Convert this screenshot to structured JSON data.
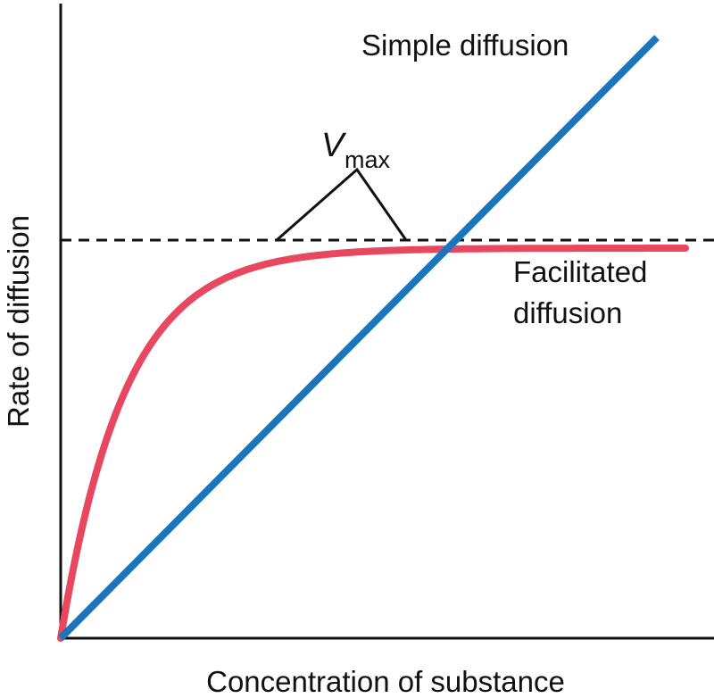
{
  "diagram": {
    "y_axis_label": "Rate of diffusion",
    "x_axis_label": "Concentration of substance",
    "curves": [
      {
        "label": "Simple diffusion"
      },
      {
        "label_lines": [
          "Facilitated",
          "diffusion"
        ]
      }
    ],
    "vmax_label": {
      "symbol": "V",
      "subscript": "max"
    }
  }
}
